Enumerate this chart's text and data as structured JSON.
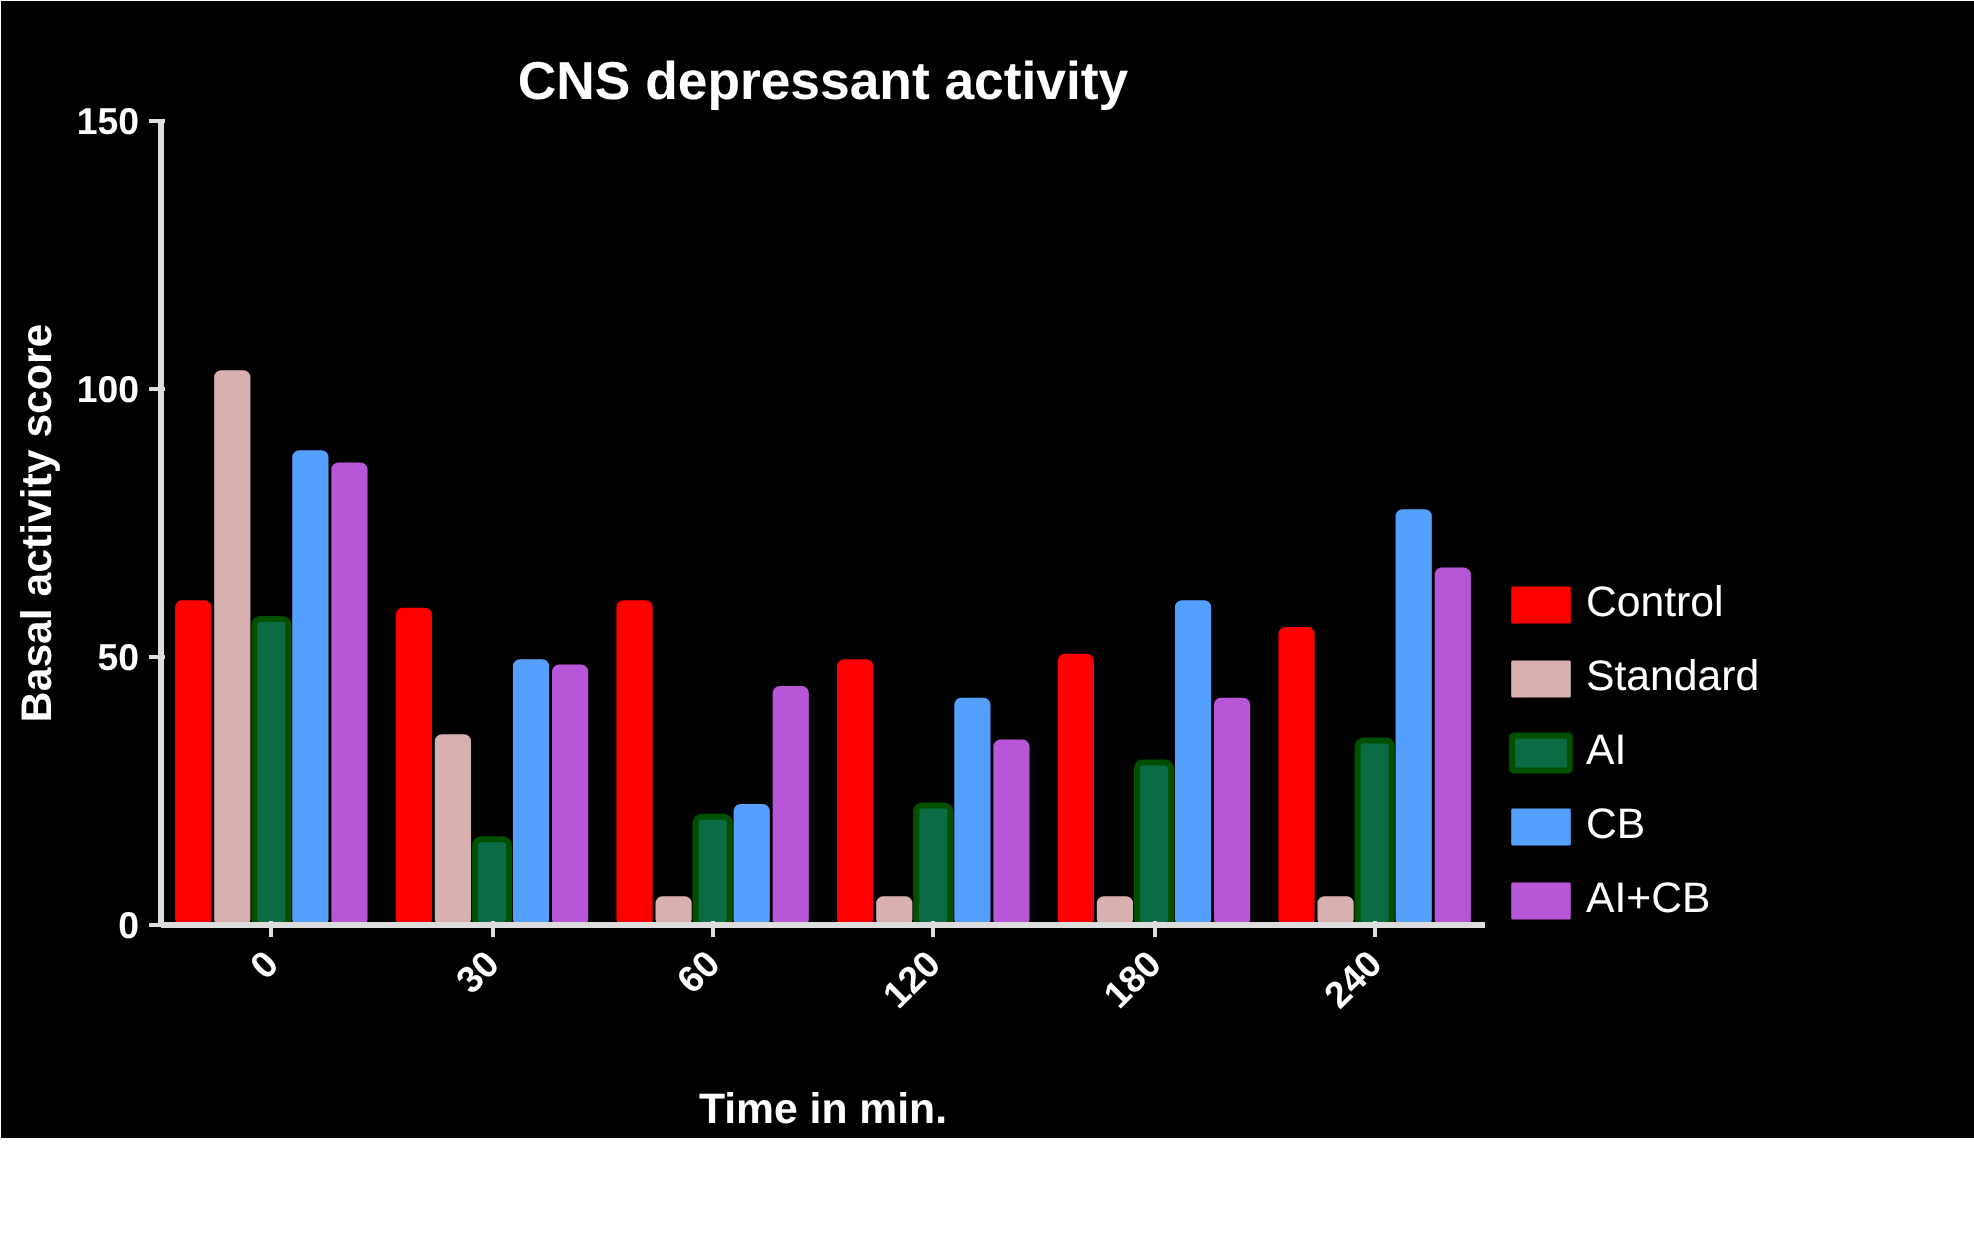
{
  "chart_data": {
    "type": "bar",
    "title": "CNS depressant activity",
    "xlabel": "Time in min.",
    "ylabel": "Basal activity score",
    "categories": [
      "0",
      "30",
      "60",
      "120",
      "180",
      "240"
    ],
    "series": [
      {
        "name": "Control",
        "color": "#ff0000",
        "values": [
          60.4,
          59,
          60.4,
          49.4,
          50.4,
          55.4
        ]
      },
      {
        "name": "Standard",
        "color": "#d8b0b0",
        "values": [
          103.3,
          35.4,
          5.2,
          5.2,
          5.2,
          5.2
        ]
      },
      {
        "name": "AI",
        "color": "#0b6b45",
        "values": [
          57.1,
          16,
          20.2,
          22.3,
          30.3,
          34.4
        ]
      },
      {
        "name": "CB",
        "color": "#55a0ff",
        "values": [
          88.4,
          49.4,
          22.4,
          42.2,
          60.4,
          77.4
        ]
      },
      {
        "name": "AI+CB",
        "color": "#b856d8",
        "values": [
          86.1,
          48.4,
          44.4,
          34.4,
          42.2,
          66.5
        ]
      }
    ],
    "ylim": [
      0,
      150
    ],
    "yticks": [
      0,
      50,
      100,
      150
    ],
    "legend": "right"
  }
}
